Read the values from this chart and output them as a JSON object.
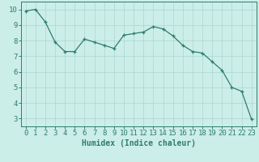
{
  "x": [
    0,
    1,
    2,
    3,
    4,
    5,
    6,
    7,
    8,
    9,
    10,
    11,
    12,
    13,
    14,
    15,
    16,
    17,
    18,
    19,
    20,
    21,
    22,
    23
  ],
  "y": [
    9.9,
    10.0,
    9.2,
    7.9,
    7.3,
    7.3,
    8.1,
    7.9,
    7.7,
    7.5,
    8.35,
    8.45,
    8.55,
    8.9,
    8.75,
    8.3,
    7.7,
    7.3,
    7.2,
    6.65,
    6.1,
    5.0,
    4.75,
    2.95
  ],
  "line_color": "#2e7d6e",
  "marker": "+",
  "background_color": "#cceee8",
  "grid_color": "#aad6ce",
  "xlabel": "Humidex (Indice chaleur)",
  "xlabel_fontsize": 7,
  "tick_fontsize": 6.5,
  "ylim": [
    2.5,
    10.5
  ],
  "xlim": [
    -0.5,
    23.5
  ],
  "yticks": [
    3,
    4,
    5,
    6,
    7,
    8,
    9,
    10
  ],
  "xticks": [
    0,
    1,
    2,
    3,
    4,
    5,
    6,
    7,
    8,
    9,
    10,
    11,
    12,
    13,
    14,
    15,
    16,
    17,
    18,
    19,
    20,
    21,
    22,
    23
  ]
}
